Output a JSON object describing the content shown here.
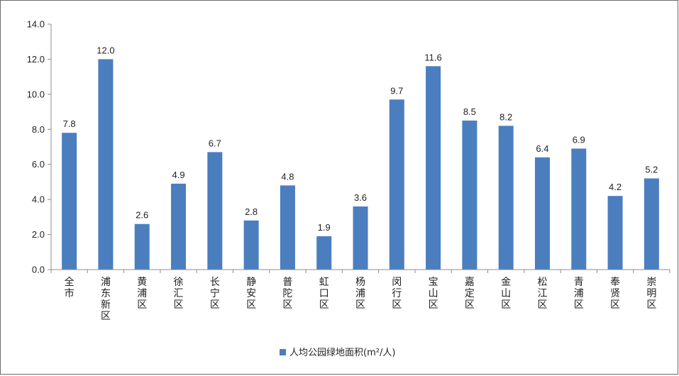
{
  "chart_data": {
    "type": "bar",
    "categories": [
      "全市",
      "浦东新区",
      "黄浦区",
      "徐汇区",
      "长宁区",
      "静安区",
      "普陀区",
      "虹口区",
      "杨浦区",
      "闵行区",
      "宝山区",
      "嘉定区",
      "金山区",
      "松江区",
      "青浦区",
      "奉贤区",
      "崇明区"
    ],
    "series": [
      {
        "name": "人均公园绿地面积(m²/人)",
        "values": [
          7.8,
          12.0,
          2.6,
          4.9,
          6.7,
          2.8,
          4.8,
          1.9,
          3.6,
          9.7,
          11.6,
          8.5,
          8.2,
          6.4,
          6.9,
          4.2,
          5.2
        ],
        "labels": [
          "7.8",
          "12.0",
          "2.6",
          "4.9",
          "6.7",
          "2.8",
          "4.8",
          "1.9",
          "3.6",
          "9.7",
          "11.6",
          "8.5",
          "8.2",
          "6.4",
          "6.9",
          "4.2",
          "5.2"
        ],
        "color": "#4a7ebf"
      }
    ],
    "yticks": [
      "0.0",
      "2.0",
      "4.0",
      "6.0",
      "8.0",
      "10.0",
      "12.0",
      "14.0"
    ],
    "ylim": [
      0,
      14
    ],
    "grid": false,
    "legend_position": "bottom-center",
    "title": "",
    "xlabel": "",
    "ylabel": ""
  }
}
